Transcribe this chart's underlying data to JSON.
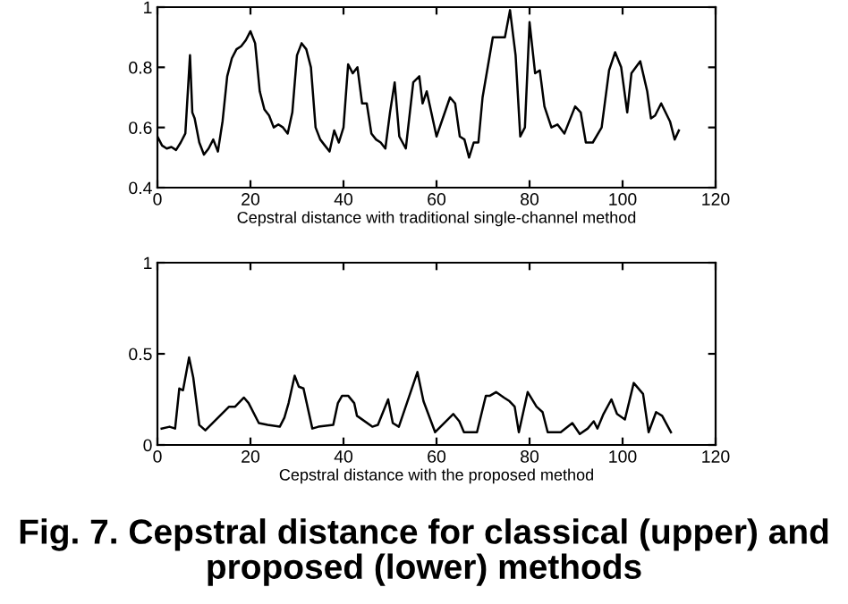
{
  "chart_data": [
    {
      "type": "line",
      "xlabel": "Cepstral distance with traditional single-channel method",
      "xlim": [
        0,
        120
      ],
      "xticks": [
        0,
        20,
        40,
        60,
        80,
        100,
        120
      ],
      "ylim": [
        0.4,
        1
      ],
      "yticks": [
        0.4,
        0.6,
        0.8,
        1
      ],
      "grid": false,
      "marker": "none",
      "line_style": "solid",
      "series": [
        {
          "color": "#000000",
          "x": [
            0,
            1,
            2,
            3,
            4,
            5,
            6,
            7,
            7.5,
            8,
            9,
            10,
            11,
            12,
            13,
            14,
            15,
            16,
            17,
            18,
            19,
            20,
            21,
            22,
            23,
            24,
            25,
            26,
            27,
            28,
            29,
            30,
            31,
            32,
            33,
            34,
            35,
            36,
            37,
            38,
            39,
            40,
            41,
            42,
            43,
            44,
            45,
            46,
            47,
            48,
            49,
            50,
            51,
            52,
            53.4,
            55,
            56.3,
            57,
            57.9,
            60,
            62.9,
            64,
            65,
            66,
            67,
            68,
            69,
            69.9,
            72.1,
            73.2,
            74.7,
            75.8,
            77,
            78,
            79,
            80,
            81.2,
            82.2,
            83.2,
            84.7,
            86,
            87.5,
            89.8,
            91,
            92.1,
            93.6,
            95.5,
            97.1,
            98.4,
            99.7,
            101,
            101.9,
            103.8,
            105.3,
            106.1,
            107,
            108.3,
            110.2,
            111.2,
            112.1
          ],
          "values": [
            0.57,
            0.54,
            0.53,
            0.535,
            0.525,
            0.55,
            0.58,
            0.84,
            0.65,
            0.63,
            0.55,
            0.51,
            0.53,
            0.56,
            0.52,
            0.62,
            0.77,
            0.83,
            0.86,
            0.87,
            0.89,
            0.92,
            0.88,
            0.72,
            0.66,
            0.64,
            0.6,
            0.61,
            0.6,
            0.58,
            0.65,
            0.84,
            0.88,
            0.86,
            0.8,
            0.6,
            0.56,
            0.54,
            0.52,
            0.59,
            0.55,
            0.6,
            0.81,
            0.78,
            0.8,
            0.68,
            0.68,
            0.58,
            0.56,
            0.55,
            0.53,
            0.65,
            0.75,
            0.57,
            0.53,
            0.75,
            0.77,
            0.68,
            0.72,
            0.57,
            0.7,
            0.68,
            0.57,
            0.56,
            0.5,
            0.55,
            0.55,
            0.7,
            0.9,
            0.9,
            0.9,
            0.99,
            0.84,
            0.57,
            0.6,
            0.95,
            0.78,
            0.79,
            0.67,
            0.6,
            0.61,
            0.58,
            0.67,
            0.65,
            0.55,
            0.55,
            0.6,
            0.79,
            0.85,
            0.8,
            0.65,
            0.78,
            0.82,
            0.72,
            0.63,
            0.64,
            0.68,
            0.62,
            0.56,
            0.59
          ]
        }
      ]
    },
    {
      "type": "line",
      "xlabel": "Cepstral distance with the proposed method",
      "xlim": [
        0,
        120
      ],
      "xticks": [
        0,
        20,
        40,
        60,
        80,
        100,
        120
      ],
      "ylim": [
        0,
        1
      ],
      "yticks": [
        0,
        0.5,
        1
      ],
      "grid": false,
      "marker": "none",
      "line_style": "solid",
      "annotations": [
        "Fig. 7. Cepstral distance for classical (upper) and proposed (lower) methods"
      ],
      "series": [
        {
          "color": "#000000",
          "x": [
            0.9,
            2.6,
            3.8,
            4.7,
            5.5,
            6.8,
            7.7,
            9,
            10.3,
            15.4,
            16.7,
            18.6,
            19.6,
            21.8,
            23.7,
            26.3,
            27.3,
            28.2,
            29.5,
            30.4,
            31.4,
            33.3,
            34.6,
            37.8,
            38.8,
            39.7,
            41,
            42.3,
            42.9,
            46.2,
            47.4,
            49.6,
            50.6,
            51.9,
            55.9,
            57.2,
            59.7,
            63.6,
            64.9,
            65.9,
            68.7,
            70.6,
            71.5,
            72.8,
            74.5,
            75.7,
            76.8,
            77.7,
            79.6,
            81.5,
            82.8,
            83.9,
            86.7,
            89.2,
            90.8,
            92.5,
            93.8,
            94.6,
            95.9,
            97.6,
            98.8,
            100.5,
            102.4,
            104.4,
            105.6,
            107.2,
            108.5,
            110.4
          ],
          "values": [
            0.09,
            0.1,
            0.09,
            0.31,
            0.3,
            0.48,
            0.37,
            0.11,
            0.08,
            0.21,
            0.21,
            0.26,
            0.23,
            0.12,
            0.11,
            0.1,
            0.15,
            0.23,
            0.38,
            0.32,
            0.31,
            0.09,
            0.1,
            0.11,
            0.23,
            0.27,
            0.27,
            0.23,
            0.16,
            0.1,
            0.11,
            0.25,
            0.12,
            0.1,
            0.4,
            0.24,
            0.07,
            0.17,
            0.13,
            0.07,
            0.07,
            0.27,
            0.27,
            0.29,
            0.26,
            0.24,
            0.21,
            0.07,
            0.29,
            0.21,
            0.18,
            0.07,
            0.07,
            0.12,
            0.06,
            0.09,
            0.13,
            0.09,
            0.17,
            0.25,
            0.17,
            0.14,
            0.34,
            0.28,
            0.07,
            0.18,
            0.16,
            0.07
          ]
        }
      ]
    }
  ]
}
